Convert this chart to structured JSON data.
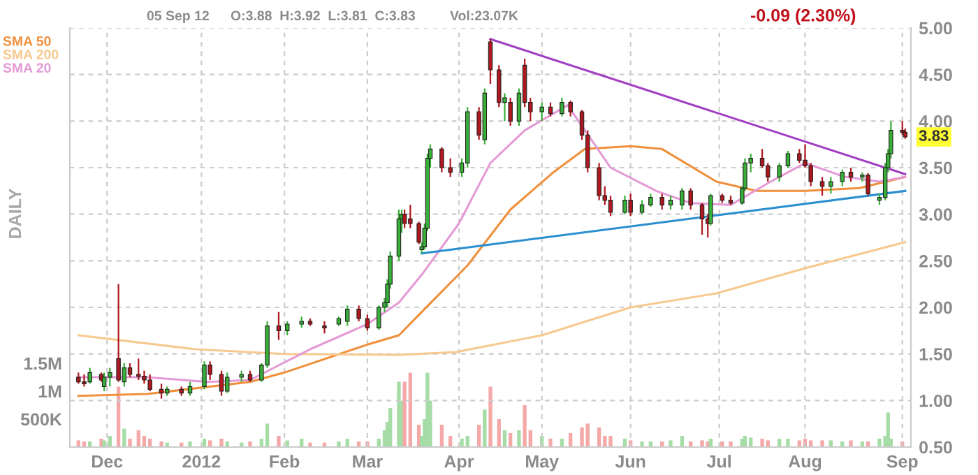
{
  "chart_data": {
    "type": "candlestick",
    "x": [
      "2011-11-21",
      "2011-11-23",
      "2011-11-25",
      "2011-11-29",
      "2011-11-30",
      "2011-12-02",
      "2011-12-05",
      "2011-12-07",
      "2011-12-09",
      "2011-12-12",
      "2011-12-14",
      "2011-12-16",
      "2011-12-20",
      "2011-12-22",
      "2011-12-27",
      "2011-12-30",
      "2012-01-04",
      "2012-01-06",
      "2012-01-10",
      "2012-01-12",
      "2012-01-17",
      "2012-01-20",
      "2012-01-24",
      "2012-01-26",
      "2012-01-30",
      "2012-02-02",
      "2012-02-07",
      "2012-02-10",
      "2012-02-15",
      "2012-02-20",
      "2012-02-23",
      "2012-02-27",
      "2012-03-01",
      "2012-03-05",
      "2012-03-07",
      "2012-03-08",
      "2012-03-09",
      "2012-03-12",
      "2012-03-13",
      "2012-03-14",
      "2012-03-16",
      "2012-03-19",
      "2012-03-20",
      "2012-03-21",
      "2012-03-22",
      "2012-03-23",
      "2012-03-27",
      "2012-03-30",
      "2012-04-03",
      "2012-04-05",
      "2012-04-09",
      "2012-04-11",
      "2012-04-13",
      "2012-04-16",
      "2012-04-18",
      "2012-04-20",
      "2012-04-23",
      "2012-04-25",
      "2012-04-27",
      "2012-05-01",
      "2012-05-04",
      "2012-05-08",
      "2012-05-11",
      "2012-05-15",
      "2012-05-17",
      "2012-05-21",
      "2012-05-23",
      "2012-05-25",
      "2012-05-30",
      "2012-06-01",
      "2012-06-05",
      "2012-06-08",
      "2012-06-12",
      "2012-06-15",
      "2012-06-19",
      "2012-06-22",
      "2012-06-26",
      "2012-06-28",
      "2012-06-29",
      "2012-07-03",
      "2012-07-06",
      "2012-07-10",
      "2012-07-11",
      "2012-07-13",
      "2012-07-17",
      "2012-07-19",
      "2012-07-23",
      "2012-07-26",
      "2012-07-30",
      "2012-08-01",
      "2012-08-03",
      "2012-08-07",
      "2012-08-10",
      "2012-08-14",
      "2012-08-17",
      "2012-08-21",
      "2012-08-23",
      "2012-08-27",
      "2012-08-29",
      "2012-08-30",
      "2012-08-31",
      "2012-09-04",
      "2012-09-05"
    ],
    "ohlc": [
      [
        1.25,
        1.3,
        1.18,
        1.2
      ],
      [
        1.2,
        1.28,
        1.15,
        1.18
      ],
      [
        1.2,
        1.35,
        1.18,
        1.3
      ],
      [
        1.28,
        1.3,
        1.2,
        1.22
      ],
      [
        1.15,
        1.3,
        1.1,
        1.25
      ],
      [
        1.25,
        1.35,
        1.15,
        1.3
      ],
      [
        1.45,
        2.25,
        1.2,
        1.22
      ],
      [
        1.2,
        1.4,
        1.15,
        1.35
      ],
      [
        1.35,
        1.4,
        1.25,
        1.28
      ],
      [
        1.28,
        1.45,
        1.22,
        1.26
      ],
      [
        1.26,
        1.32,
        1.18,
        1.22
      ],
      [
        1.22,
        1.28,
        1.1,
        1.12
      ],
      [
        1.12,
        1.18,
        1.02,
        1.08
      ],
      [
        1.08,
        1.15,
        1.05,
        1.12
      ],
      [
        1.12,
        1.15,
        1.05,
        1.08
      ],
      [
        1.08,
        1.2,
        1.05,
        1.15
      ],
      [
        1.15,
        1.42,
        1.12,
        1.38
      ],
      [
        1.38,
        1.42,
        1.22,
        1.28
      ],
      [
        1.28,
        1.32,
        1.05,
        1.1
      ],
      [
        1.1,
        1.3,
        1.08,
        1.25
      ],
      [
        1.25,
        1.32,
        1.2,
        1.28
      ],
      [
        1.28,
        1.32,
        1.2,
        1.22
      ],
      [
        1.22,
        1.4,
        1.2,
        1.38
      ],
      [
        1.38,
        1.85,
        1.35,
        1.8
      ],
      [
        1.8,
        1.95,
        1.65,
        1.75
      ],
      [
        1.75,
        1.85,
        1.7,
        1.82
      ],
      [
        1.82,
        1.9,
        1.78,
        1.85
      ],
      [
        1.85,
        1.88,
        1.8,
        1.82
      ],
      [
        1.8,
        1.85,
        1.72,
        1.78
      ],
      [
        1.82,
        1.9,
        1.8,
        1.88
      ],
      [
        1.85,
        2.02,
        1.8,
        1.98
      ],
      [
        1.98,
        2.02,
        1.85,
        1.88
      ],
      [
        1.88,
        1.92,
        1.75,
        1.78
      ],
      [
        1.78,
        2.02,
        1.76,
        2.0
      ],
      [
        2.0,
        2.1,
        1.95,
        2.05
      ],
      [
        2.05,
        2.3,
        2.0,
        2.25
      ],
      [
        2.25,
        2.6,
        2.2,
        2.55
      ],
      [
        2.55,
        3.05,
        2.5,
        2.95
      ],
      [
        2.95,
        3.05,
        2.8,
        3.0
      ],
      [
        3.0,
        3.05,
        2.85,
        2.9
      ],
      [
        2.95,
        3.1,
        2.85,
        2.9
      ],
      [
        2.9,
        2.92,
        2.68,
        2.7
      ],
      [
        2.62,
        2.7,
        2.58,
        2.65
      ],
      [
        2.65,
        2.9,
        2.62,
        2.85
      ],
      [
        2.85,
        3.65,
        2.82,
        3.6
      ],
      [
        3.6,
        3.75,
        3.5,
        3.7
      ],
      [
        3.7,
        3.72,
        3.45,
        3.5
      ],
      [
        3.5,
        3.6,
        3.4,
        3.45
      ],
      [
        3.45,
        3.6,
        3.4,
        3.55
      ],
      [
        3.55,
        4.15,
        3.5,
        4.1
      ],
      [
        4.1,
        4.15,
        3.8,
        3.85
      ],
      [
        3.8,
        4.35,
        3.75,
        4.3
      ],
      [
        4.85,
        4.88,
        4.4,
        4.55
      ],
      [
        4.55,
        4.6,
        4.15,
        4.2
      ],
      [
        4.2,
        4.3,
        4.0,
        4.25
      ],
      [
        4.2,
        4.25,
        3.95,
        4.0
      ],
      [
        4.0,
        4.35,
        3.95,
        4.3
      ],
      [
        4.6,
        4.67,
        4.15,
        4.2
      ],
      [
        4.2,
        4.25,
        4.0,
        4.1
      ],
      [
        4.1,
        4.2,
        4.0,
        4.15
      ],
      [
        4.15,
        4.2,
        4.05,
        4.08
      ],
      [
        4.08,
        4.25,
        4.05,
        4.2
      ],
      [
        4.2,
        4.22,
        4.05,
        4.1
      ],
      [
        4.1,
        4.12,
        3.8,
        3.85
      ],
      [
        3.85,
        3.9,
        3.45,
        3.5
      ],
      [
        3.5,
        3.55,
        3.15,
        3.2
      ],
      [
        3.2,
        3.3,
        3.1,
        3.15
      ],
      [
        3.15,
        3.2,
        2.98,
        3.02
      ],
      [
        3.02,
        3.2,
        3.0,
        3.15
      ],
      [
        3.15,
        3.22,
        2.98,
        3.02
      ],
      [
        3.02,
        3.15,
        3.0,
        3.1
      ],
      [
        3.1,
        3.22,
        3.08,
        3.18
      ],
      [
        3.18,
        3.22,
        3.05,
        3.1
      ],
      [
        3.1,
        3.2,
        3.05,
        3.15
      ],
      [
        3.1,
        3.28,
        3.05,
        3.25
      ],
      [
        3.25,
        3.28,
        3.05,
        3.1
      ],
      [
        3.1,
        3.12,
        2.78,
        2.95
      ],
      [
        2.95,
        3.0,
        2.75,
        2.9
      ],
      [
        2.9,
        3.22,
        2.88,
        3.2
      ],
      [
        3.2,
        3.22,
        3.12,
        3.15
      ],
      [
        3.15,
        3.2,
        3.1,
        3.12
      ],
      [
        3.12,
        3.3,
        3.1,
        3.28
      ],
      [
        3.28,
        3.6,
        3.25,
        3.55
      ],
      [
        3.55,
        3.65,
        3.45,
        3.6
      ],
      [
        3.6,
        3.7,
        3.5,
        3.52
      ],
      [
        3.52,
        3.55,
        3.35,
        3.4
      ],
      [
        3.4,
        3.55,
        3.35,
        3.52
      ],
      [
        3.52,
        3.68,
        3.5,
        3.65
      ],
      [
        3.65,
        3.7,
        3.55,
        3.58
      ],
      [
        3.58,
        3.75,
        3.5,
        3.52
      ],
      [
        3.52,
        3.55,
        3.3,
        3.35
      ],
      [
        3.35,
        3.4,
        3.2,
        3.3
      ],
      [
        3.3,
        3.4,
        3.22,
        3.35
      ],
      [
        3.35,
        3.48,
        3.3,
        3.45
      ],
      [
        3.45,
        3.5,
        3.35,
        3.4
      ],
      [
        3.4,
        3.45,
        3.35,
        3.42
      ],
      [
        3.42,
        3.44,
        3.2,
        3.22
      ],
      [
        3.15,
        3.22,
        3.1,
        3.18
      ],
      [
        3.18,
        3.55,
        3.15,
        3.5
      ],
      [
        3.5,
        3.7,
        3.45,
        3.65
      ],
      [
        3.65,
        4.0,
        3.6,
        3.9
      ],
      [
        3.9,
        4.0,
        3.85,
        3.88
      ],
      [
        3.88,
        3.92,
        3.81,
        3.83
      ]
    ],
    "colors": [
      "#b0171f",
      "#b0171f",
      "#38b038",
      "#b0171f",
      "#38b038",
      "#38b038",
      "#b0171f",
      "#38b038",
      "#b0171f",
      "#b0171f",
      "#b0171f",
      "#b0171f",
      "#b0171f",
      "#38b038",
      "#b0171f",
      "#38b038",
      "#38b038",
      "#b0171f",
      "#b0171f",
      "#38b038",
      "#38b038",
      "#b0171f",
      "#38b038",
      "#38b038",
      "#b0171f",
      "#38b038",
      "#38b038",
      "#b0171f",
      "#b0171f",
      "#38b038",
      "#38b038",
      "#b0171f",
      "#b0171f",
      "#38b038",
      "#38b038",
      "#38b038",
      "#38b038",
      "#38b038",
      "#38b038",
      "#b0171f",
      "#b0171f",
      "#b0171f",
      "#38b038",
      "#38b038",
      "#38b038",
      "#38b038",
      "#b0171f",
      "#b0171f",
      "#38b038",
      "#38b038",
      "#b0171f",
      "#38b038",
      "#b0171f",
      "#b0171f",
      "#38b038",
      "#b0171f",
      "#38b038",
      "#b0171f",
      "#b0171f",
      "#38b038",
      "#b0171f",
      "#38b038",
      "#b0171f",
      "#b0171f",
      "#b0171f",
      "#b0171f",
      "#b0171f",
      "#b0171f",
      "#38b038",
      "#b0171f",
      "#38b038",
      "#38b038",
      "#b0171f",
      "#38b038",
      "#38b038",
      "#b0171f",
      "#b0171f",
      "#b0171f",
      "#38b038",
      "#b0171f",
      "#b0171f",
      "#38b038",
      "#38b038",
      "#38b038",
      "#b0171f",
      "#b0171f",
      "#38b038",
      "#38b038",
      "#b0171f",
      "#b0171f",
      "#b0171f",
      "#b0171f",
      "#38b038",
      "#38b038",
      "#b0171f",
      "#38b038",
      "#b0171f",
      "#38b038",
      "#38b038",
      "#38b038",
      "#38b038",
      "#b0171f",
      "#b0171f"
    ],
    "series": [
      {
        "type": "bar",
        "axis": "y2",
        "values": [
          120000,
          100000,
          100000,
          150000,
          120000,
          200000,
          1080000,
          330000,
          150000,
          300000,
          200000,
          150000,
          100000,
          80000,
          80000,
          100000,
          150000,
          120000,
          150000,
          100000,
          80000,
          100000,
          150000,
          420000,
          200000,
          120000,
          150000,
          80000,
          80000,
          100000,
          150000,
          100000,
          100000,
          150000,
          300000,
          450000,
          700000,
          1170000,
          830000,
          1170000,
          1330000,
          400000,
          200000,
          500000,
          1330000,
          830000,
          400000,
          200000,
          150000,
          200000,
          400000,
          670000,
          1080000,
          500000,
          300000,
          250000,
          300000,
          750000,
          300000,
          200000,
          150000,
          150000,
          250000,
          350000,
          420000,
          350000,
          200000,
          200000,
          150000,
          120000,
          100000,
          100000,
          100000,
          120000,
          200000,
          100000,
          120000,
          100000,
          150000,
          100000,
          100000,
          150000,
          200000,
          170000,
          150000,
          120000,
          150000,
          150000,
          120000,
          150000,
          120000,
          120000,
          120000,
          100000,
          120000,
          100000,
          100000,
          150000,
          200000,
          620000,
          150000,
          100000,
          null
        ],
        "colors": [
          "#f4a8a8",
          "#f4a8a8",
          "#a6dca6",
          "#f4a8a8",
          "#a6dca6",
          "#a6dca6",
          "#f4a8a8",
          "#a6dca6",
          "#f4a8a8",
          "#f4a8a8",
          "#f4a8a8",
          "#f4a8a8",
          "#f4a8a8",
          "#a6dca6",
          "#f4a8a8",
          "#a6dca6",
          "#a6dca6",
          "#f4a8a8",
          "#f4a8a8",
          "#a6dca6",
          "#a6dca6",
          "#f4a8a8",
          "#a6dca6",
          "#a6dca6",
          "#f4a8a8",
          "#a6dca6",
          "#a6dca6",
          "#f4a8a8",
          "#f4a8a8",
          "#a6dca6",
          "#a6dca6",
          "#f4a8a8",
          "#f4a8a8",
          "#a6dca6",
          "#a6dca6",
          "#a6dca6",
          "#a6dca6",
          "#a6dca6",
          "#a6dca6",
          "#f4a8a8",
          "#f4a8a8",
          "#f4a8a8",
          "#a6dca6",
          "#a6dca6",
          "#a6dca6",
          "#a6dca6",
          "#f4a8a8",
          "#f4a8a8",
          "#a6dca6",
          "#a6dca6",
          "#f4a8a8",
          "#a6dca6",
          "#f4a8a8",
          "#f4a8a8",
          "#a6dca6",
          "#f4a8a8",
          "#a6dca6",
          "#f4a8a8",
          "#f4a8a8",
          "#a6dca6",
          "#f4a8a8",
          "#a6dca6",
          "#f4a8a8",
          "#f4a8a8",
          "#f4a8a8",
          "#f4a8a8",
          "#f4a8a8",
          "#f4a8a8",
          "#a6dca6",
          "#f4a8a8",
          "#a6dca6",
          "#a6dca6",
          "#f4a8a8",
          "#a6dca6",
          "#a6dca6",
          "#f4a8a8",
          "#f4a8a8",
          "#f4a8a8",
          "#a6dca6",
          "#f4a8a8",
          "#f4a8a8",
          "#a6dca6",
          "#a6dca6",
          "#a6dca6",
          "#f4a8a8",
          "#f4a8a8",
          "#a6dca6",
          "#a6dca6",
          "#f4a8a8",
          "#f4a8a8",
          "#f4a8a8",
          "#f4a8a8",
          "#a6dca6",
          "#a6dca6",
          "#f4a8a8",
          "#a6dca6",
          "#f4a8a8",
          "#a6dca6",
          "#a6dca6",
          "#a6dca6",
          "#a6dca6",
          "#f4a8a8",
          "#f4a8a8"
        ]
      },
      {
        "type": "line",
        "name": "SMA 50",
        "color": "#f0903c",
        "x": [
          "2011-11-21",
          "2011-12-15",
          "2012-01-20",
          "2012-02-01",
          "2012-03-01",
          "2012-03-12",
          "2012-03-20",
          "2012-04-05",
          "2012-04-20",
          "2012-05-05",
          "2012-05-16",
          "2012-06-01",
          "2012-06-12",
          "2012-07-01",
          "2012-07-15",
          "2012-08-01",
          "2012-08-20",
          "2012-09-05"
        ],
        "values": [
          1.05,
          1.07,
          1.2,
          1.3,
          1.6,
          1.7,
          1.95,
          2.45,
          3.05,
          3.45,
          3.7,
          3.73,
          3.7,
          3.35,
          3.25,
          3.25,
          3.28,
          3.4
        ]
      },
      {
        "type": "line",
        "name": "SMA 200",
        "color": "#f7c990",
        "x": [
          "2011-11-21",
          "2012-01-01",
          "2012-02-01",
          "2012-03-12",
          "2012-04-01",
          "2012-05-01",
          "2012-06-01",
          "2012-07-01",
          "2012-08-01",
          "2012-09-05"
        ],
        "values": [
          1.7,
          1.55,
          1.5,
          1.49,
          1.52,
          1.7,
          2.0,
          2.15,
          2.42,
          2.7
        ]
      },
      {
        "type": "line",
        "name": "SMA 20",
        "color": "#e49ad6",
        "x": [
          "2011-11-21",
          "2011-12-15",
          "2012-01-05",
          "2012-01-20",
          "2012-02-10",
          "2012-03-01",
          "2012-03-12",
          "2012-03-20",
          "2012-04-02",
          "2012-04-13",
          "2012-04-25",
          "2012-05-10",
          "2012-05-25",
          "2012-06-10",
          "2012-06-22",
          "2012-07-06",
          "2012-07-20",
          "2012-08-01",
          "2012-08-15",
          "2012-08-27",
          "2012-09-05"
        ],
        "values": [
          1.25,
          1.25,
          1.2,
          1.22,
          1.55,
          1.82,
          2.05,
          2.35,
          2.9,
          3.55,
          3.9,
          4.17,
          3.5,
          3.25,
          3.12,
          3.1,
          3.35,
          3.55,
          3.4,
          3.35,
          3.4
        ]
      },
      {
        "type": "line",
        "color": "#a23fc4",
        "x": [
          "2012-04-13",
          "2012-09-05"
        ],
        "values": [
          4.88,
          3.43
        ]
      },
      {
        "type": "line",
        "color": "#2a8fd0",
        "x": [
          "2012-03-20",
          "2012-09-05"
        ],
        "values": [
          2.58,
          3.25
        ]
      }
    ],
    "xlim": [
      "2011-11-18",
      "2012-09-07"
    ],
    "xticks": [
      {
        "value": "2011-12-01",
        "label": "Dec"
      },
      {
        "value": "2012-01-03",
        "label": "2012"
      },
      {
        "value": "2012-02-01",
        "label": "Feb"
      },
      {
        "value": "2012-03-01",
        "label": "Mar"
      },
      {
        "value": "2012-04-02",
        "label": "Apr"
      },
      {
        "value": "2012-05-01",
        "label": "May"
      },
      {
        "value": "2012-06-01",
        "label": "Jun"
      },
      {
        "value": "2012-07-02",
        "label": "Jul"
      },
      {
        "value": "2012-08-01",
        "label": "Aug"
      },
      {
        "value": "2012-09-04",
        "label": "Sep"
      }
    ],
    "ylim": [
      0.5,
      5.0
    ],
    "yticks": [
      {
        "value": 0.5,
        "label": "0.50"
      },
      {
        "value": 1.0,
        "label": "1.00"
      },
      {
        "value": 1.5,
        "label": "1.50"
      },
      {
        "value": 2.0,
        "label": "2.00"
      },
      {
        "value": 2.5,
        "label": "2.50"
      },
      {
        "value": 3.0,
        "label": "3.00"
      },
      {
        "value": 3.5,
        "label": "3.50"
      },
      {
        "value": 4.0,
        "label": "4.00"
      },
      {
        "value": 4.5,
        "label": "4.50"
      },
      {
        "value": 5.0,
        "label": "5.00"
      }
    ],
    "y2lim": [
      0,
      7500000
    ],
    "y2ticks": [
      {
        "value": 500000,
        "label": "500K"
      },
      {
        "value": 1000000,
        "label": "1M"
      },
      {
        "value": 1500000,
        "label": "1.5M"
      }
    ],
    "y2label": "DAILY",
    "annotations": [
      "05 Sep 12",
      "O:3.88  H:3.92  L:3.81  C:3.83",
      "Vol:23.07K",
      "-0.09 (2.30%)",
      "3.83"
    ],
    "grid": true,
    "legend": "top left",
    "marker": "none",
    "line_style": "solid"
  }
}
